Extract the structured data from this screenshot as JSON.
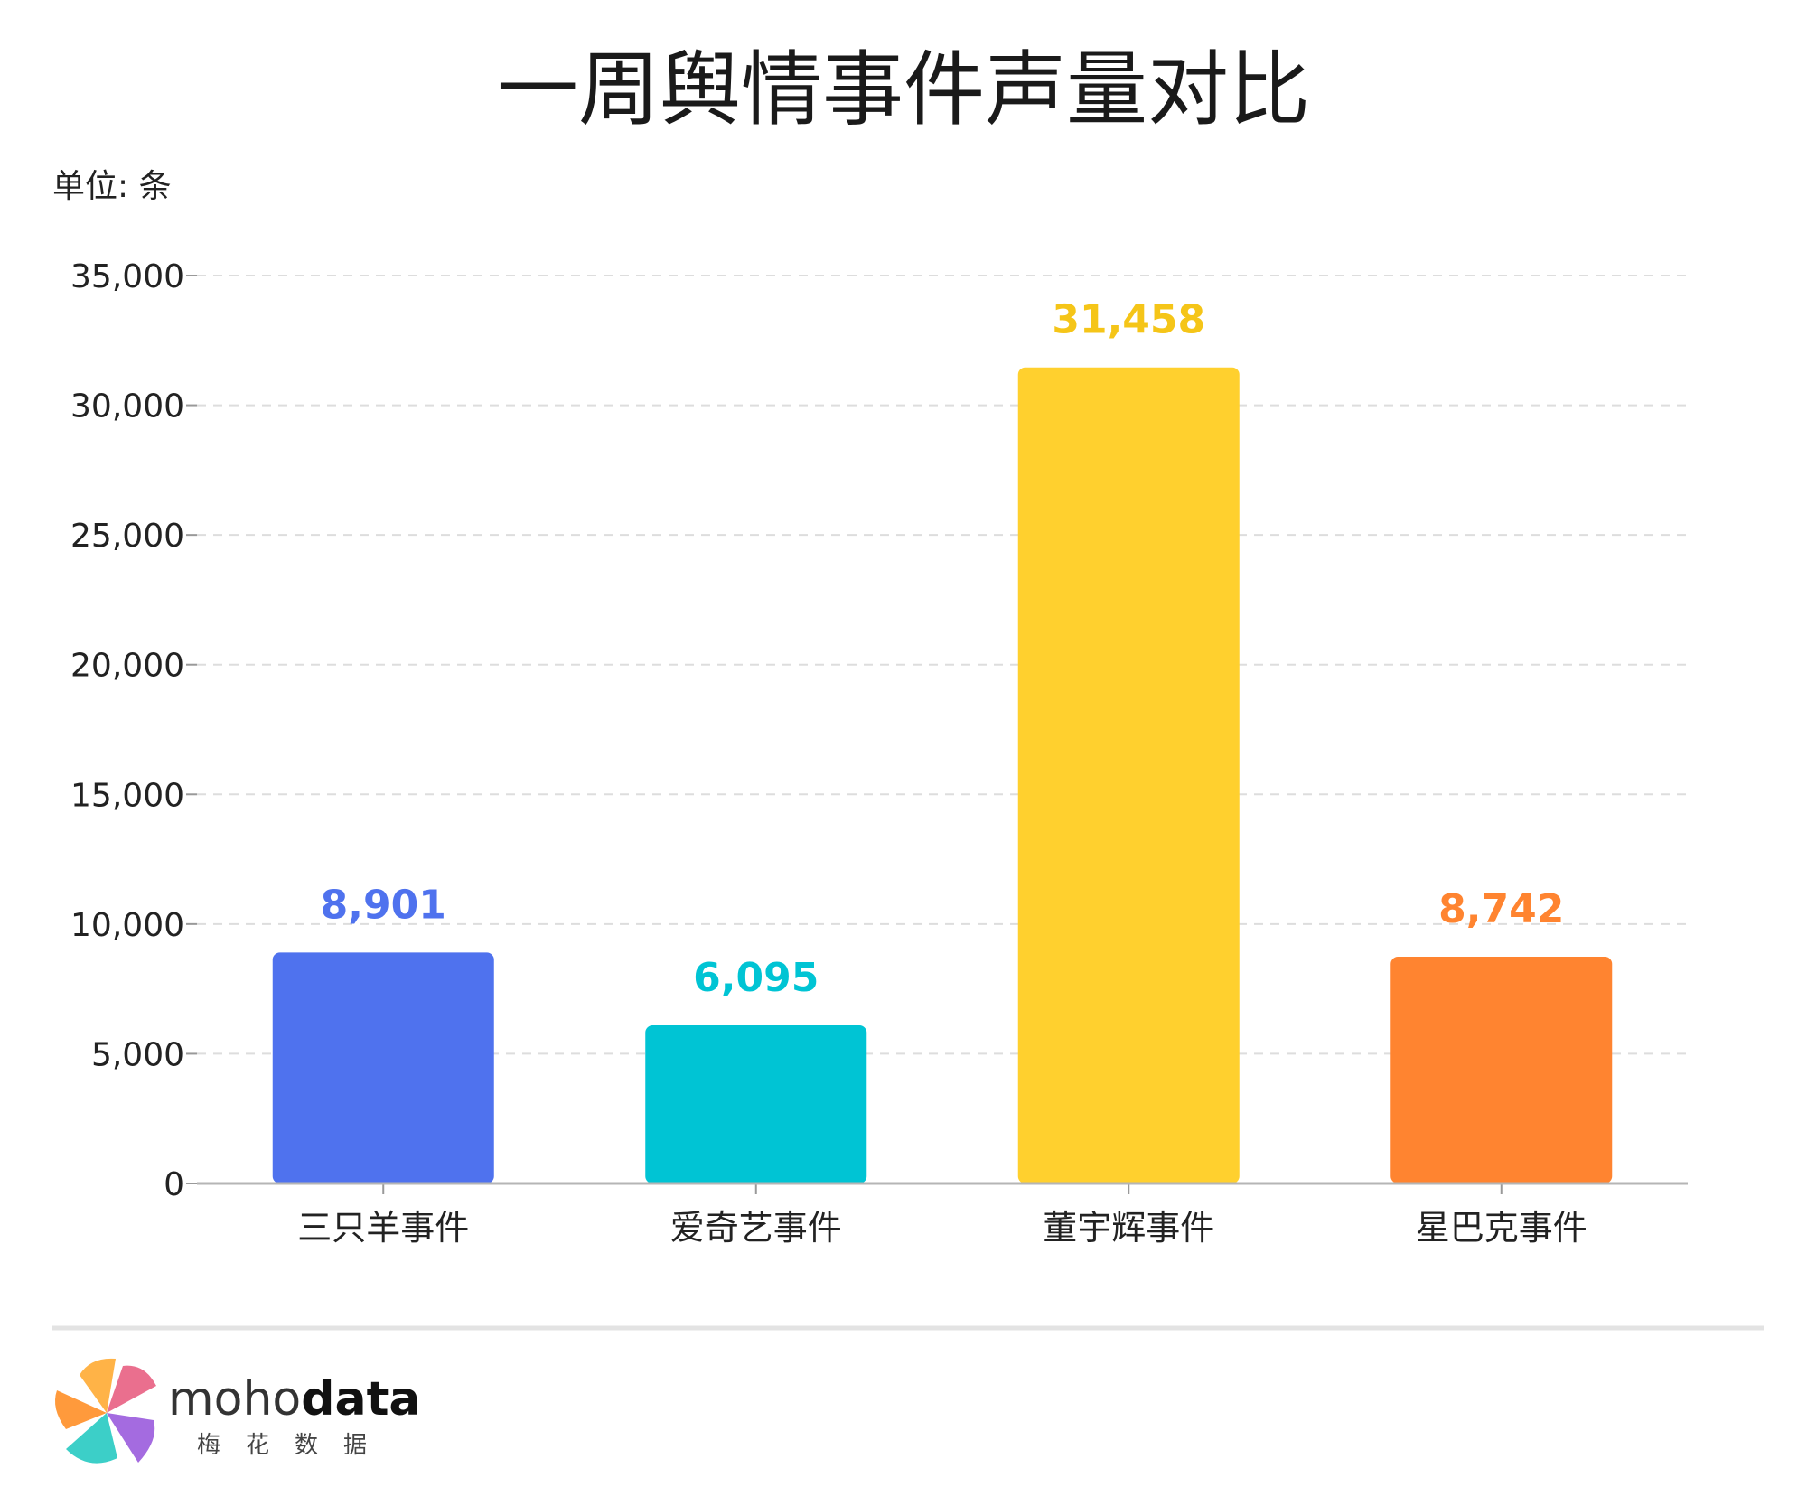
{
  "chart_data": {
    "type": "bar",
    "title": "一周舆情事件声量对比",
    "unit_label": "单位: 条",
    "categories": [
      "三只羊事件",
      "爱奇艺事件",
      "董宇辉事件",
      "星巴克事件"
    ],
    "values": [
      8901,
      6095,
      31458,
      8742
    ],
    "data_labels": [
      "8,901",
      "6,095",
      "31,458",
      "8,742"
    ],
    "colors": [
      "#4f72ee",
      "#00c4d4",
      "#ffd02e",
      "#ff8430"
    ],
    "ylim": [
      0,
      35000
    ],
    "yticks": [
      0,
      5000,
      10000,
      15000,
      20000,
      25000,
      30000,
      35000
    ],
    "ytick_labels": [
      "0",
      "5,000",
      "10,000",
      "15,000",
      "20,000",
      "25,000",
      "30,000",
      "35,000"
    ],
    "grid": true
  },
  "branding": {
    "name_light": "moho",
    "name_bold": "data",
    "sub": "梅花数据",
    "icon": "pinwheel-logo-icon"
  }
}
